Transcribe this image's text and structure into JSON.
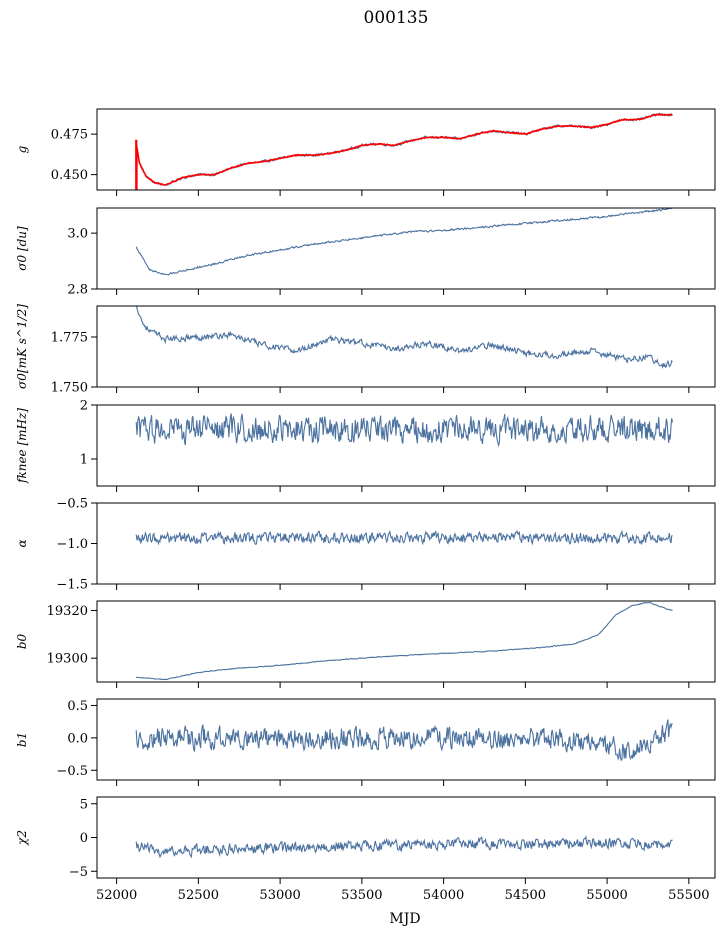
{
  "title": "000135",
  "xlabel": "MJD",
  "x_ticks": [
    52000,
    52500,
    53000,
    53500,
    54000,
    54500,
    55000,
    55500
  ],
  "colors": {
    "series": "#4c72a0",
    "highlight": "#ff0000"
  },
  "chart_data": [
    {
      "type": "line",
      "id": "g",
      "ylabel": "g",
      "ylim": [
        0.4405,
        0.4905
      ],
      "yticks": [
        0.45,
        0.475
      ],
      "ytick_labels": [
        "0.450",
        "0.475"
      ],
      "noise": 0.0007,
      "highlight_overlay": true,
      "x": [
        52120,
        52140,
        52180,
        52230,
        52300,
        52400,
        52500,
        52600,
        52700,
        52800,
        52900,
        53000,
        53100,
        53200,
        53300,
        53400,
        53500,
        53600,
        53700,
        53800,
        53900,
        54000,
        54100,
        54200,
        54300,
        54400,
        54500,
        54600,
        54700,
        54800,
        54900,
        55000,
        55100,
        55200,
        55300,
        55400
      ],
      "y": [
        0.469,
        0.457,
        0.449,
        0.445,
        0.4435,
        0.448,
        0.45,
        0.45,
        0.454,
        0.457,
        0.458,
        0.46,
        0.462,
        0.462,
        0.463,
        0.465,
        0.468,
        0.469,
        0.468,
        0.471,
        0.473,
        0.473,
        0.472,
        0.475,
        0.477,
        0.476,
        0.475,
        0.478,
        0.48,
        0.48,
        0.479,
        0.481,
        0.484,
        0.484,
        0.487,
        0.487
      ]
    },
    {
      "type": "line",
      "id": "sigma0",
      "ylabel": "σ0 [du]",
      "ylim": [
        2.8,
        3.09
      ],
      "yticks": [
        2.8,
        3.0
      ],
      "ytick_labels": [
        "2.8",
        "3.0"
      ],
      "noise": 0.003,
      "x": [
        52120,
        52200,
        52300,
        52400,
        52600,
        52800,
        53000,
        53200,
        53400,
        53600,
        53800,
        54000,
        54200,
        54400,
        54600,
        54800,
        55000,
        55200,
        55300,
        55400
      ],
      "y": [
        2.95,
        2.87,
        2.85,
        2.865,
        2.89,
        2.92,
        2.94,
        2.96,
        2.975,
        2.99,
        3.005,
        3.01,
        3.02,
        3.03,
        3.04,
        3.05,
        3.06,
        3.075,
        3.08,
        3.09
      ]
    },
    {
      "type": "line",
      "id": "sigma0-thermal",
      "ylabel": "σ0[mK s^1/2]",
      "ylim": [
        1.75,
        1.7905
      ],
      "yticks": [
        1.75,
        1.775
      ],
      "ytick_labels": [
        "1.750",
        "1.775"
      ],
      "noise": 0.0014,
      "x": [
        52120,
        52160,
        52200,
        52300,
        52500,
        52700,
        52900,
        53100,
        53300,
        53500,
        53700,
        53900,
        54100,
        54300,
        54500,
        54700,
        54900,
        55100,
        55250,
        55350,
        55400
      ],
      "y": [
        1.791,
        1.782,
        1.778,
        1.774,
        1.775,
        1.776,
        1.771,
        1.768,
        1.774,
        1.772,
        1.769,
        1.772,
        1.768,
        1.771,
        1.767,
        1.766,
        1.768,
        1.764,
        1.765,
        1.761,
        1.762
      ]
    },
    {
      "type": "line",
      "id": "fknee",
      "ylabel": "fknee [mHz]",
      "ylim": [
        0.5,
        2.0
      ],
      "yticks": [
        1,
        2
      ],
      "ytick_labels": [
        "1",
        "2"
      ],
      "noise": 0.22,
      "x": [
        52120,
        55400
      ],
      "y": [
        1.55,
        1.55
      ]
    },
    {
      "type": "line",
      "id": "alpha",
      "ylabel": "α",
      "ylim": [
        -1.5,
        -0.5
      ],
      "yticks": [
        -1.5,
        -1.0,
        -0.5
      ],
      "ytick_labels": [
        "−1.5",
        "−1.0",
        "−0.5"
      ],
      "noise": 0.06,
      "x": [
        52120,
        55400
      ],
      "y": [
        -0.93,
        -0.93
      ]
    },
    {
      "type": "line",
      "id": "b0",
      "ylabel": "b0",
      "ylim": [
        19290,
        19324
      ],
      "yticks": [
        19300,
        19320
      ],
      "ytick_labels": [
        "19300",
        "19320"
      ],
      "noise": 0.15,
      "x": [
        52120,
        52300,
        52500,
        52700,
        53000,
        53300,
        53600,
        54000,
        54300,
        54600,
        54800,
        54950,
        55050,
        55150,
        55250,
        55350,
        55400
      ],
      "y": [
        19292,
        19291,
        19294,
        19295.5,
        19297,
        19299,
        19300.5,
        19302,
        19303,
        19304.5,
        19306,
        19310,
        19318,
        19322,
        19323.5,
        19321,
        19320
      ]
    },
    {
      "type": "line",
      "id": "b1",
      "ylabel": "b1",
      "ylim": [
        -0.65,
        0.6
      ],
      "yticks": [
        -0.5,
        0.0,
        0.5
      ],
      "ytick_labels": [
        "−0.5",
        "0.0",
        "0.5"
      ],
      "noise": 0.15,
      "x": [
        52120,
        54700,
        55000,
        55150,
        55300,
        55400
      ],
      "y": [
        0.0,
        0.0,
        -0.1,
        -0.2,
        0.05,
        0.1
      ]
    },
    {
      "type": "line",
      "id": "chi2",
      "ylabel": "χ2",
      "ylim": [
        -6,
        6
      ],
      "yticks": [
        -5,
        0,
        5
      ],
      "ytick_labels": [
        "−5",
        "0",
        "5"
      ],
      "noise": 0.7,
      "x": [
        52120,
        52300,
        52500,
        53000,
        54000,
        55000,
        55400
      ],
      "y": [
        -1.2,
        -2.3,
        -1.8,
        -1.5,
        -1.0,
        -0.8,
        -1.0
      ]
    }
  ]
}
